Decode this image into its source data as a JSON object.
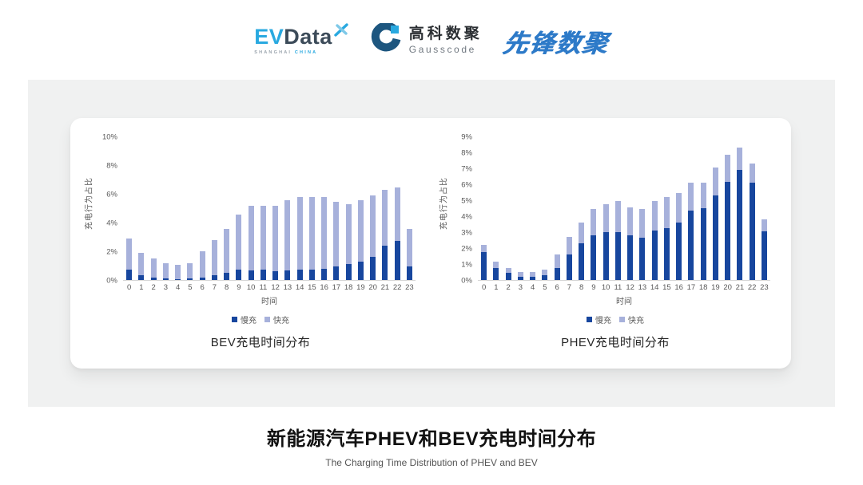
{
  "header": {
    "evdata": {
      "ev": "EV",
      "data": "Data",
      "shanghai": "SHANGHAI",
      "china": "CHINA"
    },
    "gausscode": {
      "cn": "高科数聚",
      "en": "Gausscode"
    },
    "xianfeng": "先锋数聚"
  },
  "colors": {
    "slow": "#17469e",
    "fast": "#a7b1db",
    "accent_cyan": "#29a9e0",
    "accent_navy": "#1d567f",
    "xianfeng_blue": "#2d7ac8"
  },
  "chart_data": [
    {
      "type": "bar",
      "stacked": true,
      "title": "BEV充电时间分布",
      "xlabel": "时间",
      "ylabel": "充电行为占比",
      "ylim": [
        0,
        10
      ],
      "y_tick_step": 2,
      "grid": false,
      "legend_position": "bottom",
      "categories": [
        0,
        1,
        2,
        3,
        4,
        5,
        6,
        7,
        8,
        9,
        10,
        11,
        12,
        13,
        14,
        15,
        16,
        17,
        18,
        19,
        20,
        21,
        22,
        23
      ],
      "series": [
        {
          "name": "慢充",
          "color": "#17469e",
          "values": [
            0.75,
            0.35,
            0.15,
            0.1,
            0.08,
            0.1,
            0.15,
            0.35,
            0.5,
            0.7,
            0.65,
            0.7,
            0.6,
            0.65,
            0.7,
            0.7,
            0.8,
            0.95,
            1.1,
            1.3,
            1.6,
            2.4,
            2.75,
            0.95
          ]
        },
        {
          "name": "快充",
          "color": "#a7b1db",
          "values": [
            2.15,
            1.55,
            1.35,
            1.1,
            1.0,
            1.1,
            1.85,
            2.45,
            3.1,
            3.9,
            4.55,
            4.5,
            4.6,
            4.95,
            5.1,
            5.1,
            5.0,
            4.55,
            4.2,
            4.3,
            4.3,
            3.9,
            3.75,
            2.65
          ]
        }
      ]
    },
    {
      "type": "bar",
      "stacked": true,
      "title": "PHEV充电时间分布",
      "xlabel": "时间",
      "ylabel": "充电行为占比",
      "ylim": [
        0,
        9
      ],
      "y_tick_step": 1,
      "grid": false,
      "legend_position": "bottom",
      "categories": [
        0,
        1,
        2,
        3,
        4,
        5,
        6,
        7,
        8,
        9,
        10,
        11,
        12,
        13,
        14,
        15,
        16,
        17,
        18,
        19,
        20,
        21,
        22,
        23
      ],
      "series": [
        {
          "name": "慢充",
          "color": "#17469e",
          "values": [
            1.75,
            0.75,
            0.45,
            0.2,
            0.2,
            0.3,
            0.75,
            1.6,
            2.3,
            2.8,
            3.0,
            3.0,
            2.8,
            2.65,
            3.1,
            3.25,
            3.6,
            4.35,
            4.55,
            5.35,
            6.2,
            6.95,
            6.15,
            3.05
          ]
        },
        {
          "name": "快充",
          "color": "#a7b1db",
          "values": [
            0.45,
            0.4,
            0.3,
            0.3,
            0.3,
            0.35,
            0.85,
            1.1,
            1.3,
            1.7,
            1.8,
            2.0,
            1.8,
            1.85,
            1.9,
            2.0,
            1.9,
            1.8,
            1.6,
            1.75,
            1.7,
            1.4,
            1.2,
            0.75
          ]
        }
      ]
    }
  ],
  "footer": {
    "title": "新能源汽车PHEV和BEV充电时间分布",
    "subtitle": "The Charging Time Distribution of PHEV and BEV"
  }
}
